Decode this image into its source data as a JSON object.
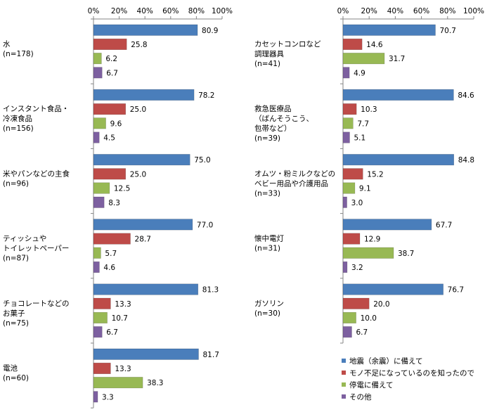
{
  "chart_data": {
    "type": "bar",
    "orientation": "horizontal",
    "xlim": [
      0,
      100
    ],
    "x_ticks": [
      "0%",
      "20%",
      "40%",
      "60%",
      "80%",
      "100%"
    ],
    "grid": false,
    "legend_position": "bottom-right",
    "series": [
      {
        "name": "地震（余震）に備えて",
        "color": "#4a7ebb"
      },
      {
        "name": "モノ不足になっているのを知ったので",
        "color": "#be4b48"
      },
      {
        "name": "停電に備えて",
        "color": "#98b954"
      },
      {
        "name": "その他",
        "color": "#7d60a0"
      }
    ],
    "panels": [
      {
        "groups": [
          {
            "label_lines": [
              "水",
              "(n=178)"
            ],
            "values": [
              80.9,
              25.8,
              6.2,
              6.7
            ],
            "value_labels": [
              "80.9",
              "25.8",
              "6.2",
              "6.7"
            ]
          },
          {
            "label_lines": [
              "インスタント食品・",
              "冷凍食品",
              "(n=156)"
            ],
            "values": [
              78.2,
              25.0,
              9.6,
              4.5
            ],
            "value_labels": [
              "78.2",
              "25.0",
              "9.6",
              "4.5"
            ]
          },
          {
            "label_lines": [
              "米やパンなどの主食",
              "(n=96)"
            ],
            "values": [
              75.0,
              25.0,
              12.5,
              8.3
            ],
            "value_labels": [
              "75.0",
              "25.0",
              "12.5",
              "8.3"
            ]
          },
          {
            "label_lines": [
              "ティッシュや",
              "トイレットペーパー",
              "(n=87)"
            ],
            "values": [
              77.0,
              28.7,
              5.7,
              4.6
            ],
            "value_labels": [
              "77.0",
              "28.7",
              "5.7",
              "4.6"
            ]
          },
          {
            "label_lines": [
              "チョコレートなどの",
              "お菓子",
              "(n=75)"
            ],
            "values": [
              81.3,
              13.3,
              10.7,
              6.7
            ],
            "value_labels": [
              "81.3",
              "13.3",
              "10.7",
              "6.7"
            ]
          },
          {
            "label_lines": [
              "電池",
              "(n=60)"
            ],
            "values": [
              81.7,
              13.3,
              38.3,
              3.3
            ],
            "value_labels": [
              "81.7",
              "13.3",
              "38.3",
              "3.3"
            ]
          }
        ]
      },
      {
        "groups": [
          {
            "label_lines": [
              "カセットコンロなど",
              "調理器具",
              "(n=41)"
            ],
            "values": [
              70.7,
              14.6,
              31.7,
              4.9
            ],
            "value_labels": [
              "70.7",
              "14.6",
              "31.7",
              "4.9"
            ]
          },
          {
            "label_lines": [
              "救急医療品",
              "（ばんそうこう、",
              "包帯など）",
              "(n=39)"
            ],
            "values": [
              84.6,
              10.3,
              7.7,
              5.1
            ],
            "value_labels": [
              "84.6",
              "10.3",
              "7.7",
              "5.1"
            ]
          },
          {
            "label_lines": [
              "オムツ・粉ミルクなどの",
              "ベビー用品や介護用品",
              "(n=33)"
            ],
            "values": [
              84.8,
              15.2,
              9.1,
              3.0
            ],
            "value_labels": [
              "84.8",
              "15.2",
              "9.1",
              "3.0"
            ]
          },
          {
            "label_lines": [
              "懐中電灯",
              "(n=31)"
            ],
            "values": [
              67.7,
              12.9,
              38.7,
              3.2
            ],
            "value_labels": [
              "67.7",
              "12.9",
              "38.7",
              "3.2"
            ]
          },
          {
            "label_lines": [
              "ガソリン",
              "(n=30)"
            ],
            "values": [
              76.7,
              20.0,
              10.0,
              6.7
            ],
            "value_labels": [
              "76.7",
              "20.0",
              "10.0",
              "6.7"
            ]
          }
        ]
      }
    ]
  }
}
